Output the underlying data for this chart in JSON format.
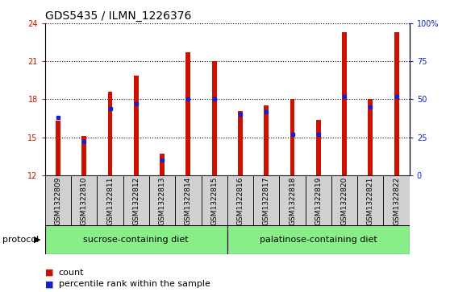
{
  "title": "GDS5435 / ILMN_1226376",
  "samples": [
    "GSM1322809",
    "GSM1322810",
    "GSM1322811",
    "GSM1322812",
    "GSM1322813",
    "GSM1322814",
    "GSM1322815",
    "GSM1322816",
    "GSM1322817",
    "GSM1322818",
    "GSM1322819",
    "GSM1322820",
    "GSM1322821",
    "GSM1322822"
  ],
  "count_values": [
    16.3,
    15.1,
    18.6,
    19.9,
    13.7,
    21.7,
    21.0,
    17.1,
    17.5,
    18.0,
    16.4,
    23.3,
    18.0,
    23.3
  ],
  "percentile_values": [
    38,
    22,
    44,
    47,
    10,
    50,
    50,
    40,
    42,
    27,
    27,
    52,
    45,
    52
  ],
  "ylim_left": [
    12,
    24
  ],
  "ylim_right": [
    0,
    100
  ],
  "yticks_left": [
    12,
    15,
    18,
    21,
    24
  ],
  "yticks_right": [
    0,
    25,
    50,
    75,
    100
  ],
  "bar_color": "#cc1100",
  "blue_color": "#1122cc",
  "group1_label": "sucrose-containing diet",
  "group1_count": 7,
  "group2_label": "palatinose-containing diet",
  "group2_count": 7,
  "group_color": "#88ee88",
  "protocol_label": "protocol",
  "legend_count": "count",
  "legend_pct": "percentile rank within the sample",
  "plot_bg_color": "#ffffff",
  "tick_bg_color": "#d0d0d0",
  "title_fontsize": 10,
  "tick_fontsize": 7,
  "sample_fontsize": 6.5,
  "label_fontsize": 8,
  "bar_width": 0.18
}
